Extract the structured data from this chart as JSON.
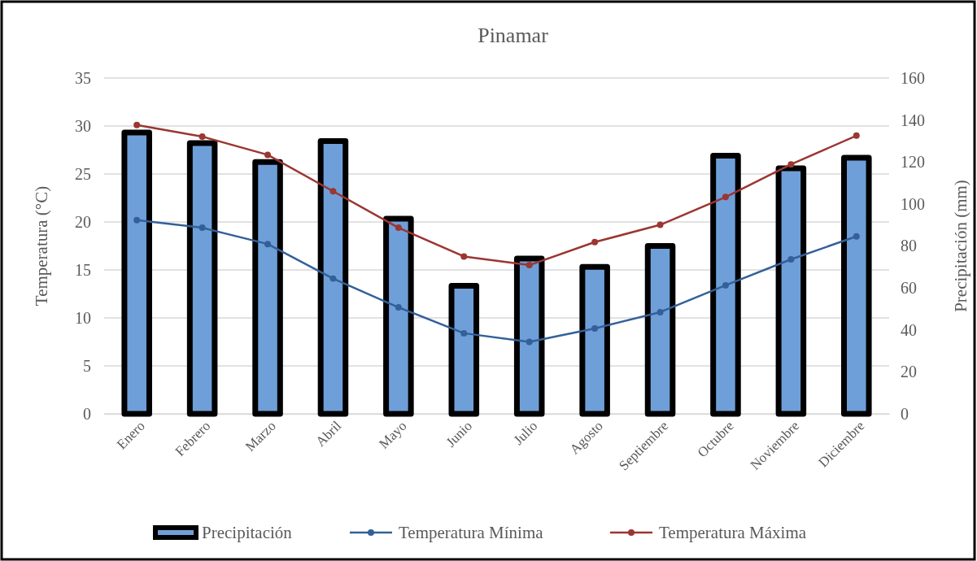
{
  "chart_data": {
    "type": "bar",
    "title": "Pinamar",
    "ylabel": "Temperatura (°C)",
    "y2label": "Precipitación (mm)",
    "categories": [
      "Enero",
      "Febrero",
      "Marzo",
      "Abril",
      "Mayo",
      "Junio",
      "Julio",
      "Agosto",
      "Septiembre",
      "Octubre",
      "Noviembre",
      "Diciembre"
    ],
    "series": [
      {
        "name": "Precipitación",
        "axis": "y2",
        "color": "#6f9fd8",
        "values": [
          134,
          129,
          120,
          130,
          93,
          61,
          74,
          70,
          80,
          123,
          117,
          122
        ]
      },
      {
        "name": "Temperatura Mínima",
        "type": "line",
        "color": "#34609a",
        "values": [
          20.2,
          19.4,
          17.7,
          14.1,
          11.1,
          8.4,
          7.5,
          8.9,
          10.6,
          13.4,
          16.1,
          18.5
        ]
      },
      {
        "name": "Temperatura Máxima",
        "type": "line",
        "color": "#9b3632",
        "values": [
          30.1,
          28.9,
          27.0,
          23.2,
          19.4,
          16.4,
          15.5,
          17.9,
          19.7,
          22.6,
          26.0,
          29.0
        ]
      }
    ],
    "ylim": [
      0,
      35
    ],
    "yticks": [
      0,
      5,
      10,
      15,
      20,
      25,
      30,
      35
    ],
    "y2lim": [
      0,
      160
    ],
    "y2ticks": [
      0,
      20,
      40,
      60,
      80,
      100,
      120,
      140,
      160
    ],
    "grid": "y",
    "legend": "bottom",
    "marker": "circle",
    "line_style": "solid"
  }
}
